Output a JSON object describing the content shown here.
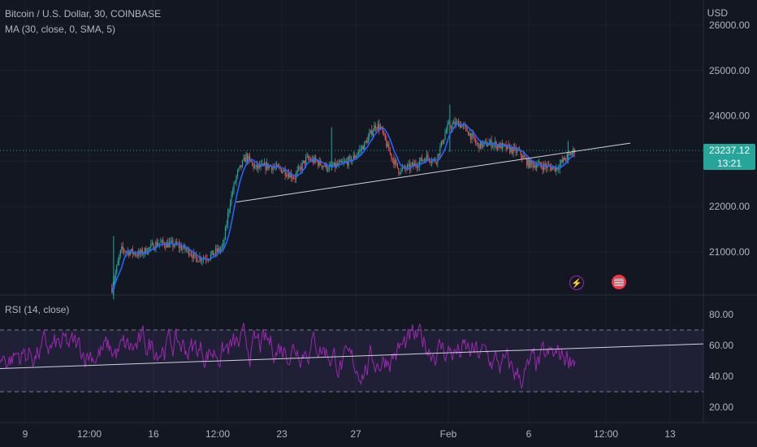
{
  "legend": {
    "symbol": "Bitcoin / U.S. Dollar, 30, COINBASE",
    "ma": "MA (30, close, 0, SMA, 5)",
    "rsi": "RSI (14, close)"
  },
  "currency": "USD",
  "last_price": "23237.12",
  "countdown": "13:21",
  "price_axis": [
    "26000.00",
    "25000.00",
    "24000.00",
    "23000.00",
    "22000.00",
    "21000.00"
  ],
  "rsi_axis": [
    "80.00",
    "60.00",
    "40.00",
    "20.00"
  ],
  "time_axis": [
    "9",
    "12:00",
    "16",
    "12:00",
    "23",
    "27",
    "Feb",
    "6",
    "12:00",
    "13"
  ],
  "colors": {
    "background": "#131722",
    "up": "#26a69a",
    "down": "#ef5350",
    "ma": "#2962ff",
    "rsi": "#9c27b0",
    "trendline": "#d1d4dc"
  },
  "icons": [
    "lightning-icon",
    "us-flag-icon"
  ],
  "chart_data": [
    {
      "type": "candlestick",
      "title": "Bitcoin / U.S. Dollar, 30, COINBASE",
      "y_unit": "USD",
      "ylim": [
        19900,
        26200
      ],
      "x_ticks": [
        "9",
        "12:00",
        "16",
        "12:00",
        "23",
        "27",
        "Feb",
        "6",
        "12:00",
        "13"
      ],
      "path": [
        {
          "t": 0.0,
          "v": 20200
        },
        {
          "t": 0.02,
          "v": 21050
        },
        {
          "t": 0.06,
          "v": 20950
        },
        {
          "t": 0.1,
          "v": 21200
        },
        {
          "t": 0.14,
          "v": 21150
        },
        {
          "t": 0.17,
          "v": 21000
        },
        {
          "t": 0.18,
          "v": 20850
        },
        {
          "t": 0.21,
          "v": 20900
        },
        {
          "t": 0.24,
          "v": 21100
        },
        {
          "t": 0.255,
          "v": 22100
        },
        {
          "t": 0.27,
          "v": 22700
        },
        {
          "t": 0.29,
          "v": 23100
        },
        {
          "t": 0.31,
          "v": 22850
        },
        {
          "t": 0.34,
          "v": 22900
        },
        {
          "t": 0.37,
          "v": 22800
        },
        {
          "t": 0.395,
          "v": 22650
        },
        {
          "t": 0.42,
          "v": 23050
        },
        {
          "t": 0.44,
          "v": 23000
        },
        {
          "t": 0.47,
          "v": 22850
        },
        {
          "t": 0.5,
          "v": 22950
        },
        {
          "t": 0.52,
          "v": 23050
        },
        {
          "t": 0.545,
          "v": 23350
        },
        {
          "t": 0.57,
          "v": 23800
        },
        {
          "t": 0.58,
          "v": 23750
        },
        {
          "t": 0.6,
          "v": 23200
        },
        {
          "t": 0.62,
          "v": 22800
        },
        {
          "t": 0.64,
          "v": 22850
        },
        {
          "t": 0.66,
          "v": 22950
        },
        {
          "t": 0.68,
          "v": 23100
        },
        {
          "t": 0.7,
          "v": 23000
        },
        {
          "t": 0.725,
          "v": 23750
        },
        {
          "t": 0.75,
          "v": 23850
        },
        {
          "t": 0.77,
          "v": 23650
        },
        {
          "t": 0.79,
          "v": 23350
        },
        {
          "t": 0.82,
          "v": 23400
        },
        {
          "t": 0.85,
          "v": 23300
        },
        {
          "t": 0.88,
          "v": 23200
        },
        {
          "t": 0.9,
          "v": 22950
        },
        {
          "t": 0.93,
          "v": 22900
        },
        {
          "t": 0.96,
          "v": 22850
        },
        {
          "t": 0.98,
          "v": 23050
        },
        {
          "t": 1.0,
          "v": 23237
        }
      ],
      "trendline": {
        "start": 22100,
        "end": 23400,
        "extends_to": "13"
      },
      "last_price": 23237.12
    },
    {
      "type": "line",
      "title": "RSI (14, close)",
      "ylim": [
        15,
        92
      ],
      "bands": [
        30,
        70
      ],
      "y_ticks": [
        80,
        60,
        40,
        20
      ],
      "range": [
        18,
        90
      ],
      "mean_path": [
        {
          "t": 0.0,
          "v": 52
        },
        {
          "t": 0.1,
          "v": 58
        },
        {
          "t": 0.2,
          "v": 55
        },
        {
          "t": 0.28,
          "v": 62
        },
        {
          "t": 0.35,
          "v": 56
        },
        {
          "t": 0.42,
          "v": 58
        },
        {
          "t": 0.5,
          "v": 60
        },
        {
          "t": 0.55,
          "v": 62
        },
        {
          "t": 0.6,
          "v": 44
        },
        {
          "t": 0.66,
          "v": 52
        },
        {
          "t": 0.72,
          "v": 62
        },
        {
          "t": 0.78,
          "v": 56
        },
        {
          "t": 0.84,
          "v": 52
        },
        {
          "t": 0.9,
          "v": 40
        },
        {
          "t": 0.95,
          "v": 50
        },
        {
          "t": 1.0,
          "v": 56
        }
      ],
      "trendline": {
        "start": 45,
        "end": 61
      }
    }
  ]
}
